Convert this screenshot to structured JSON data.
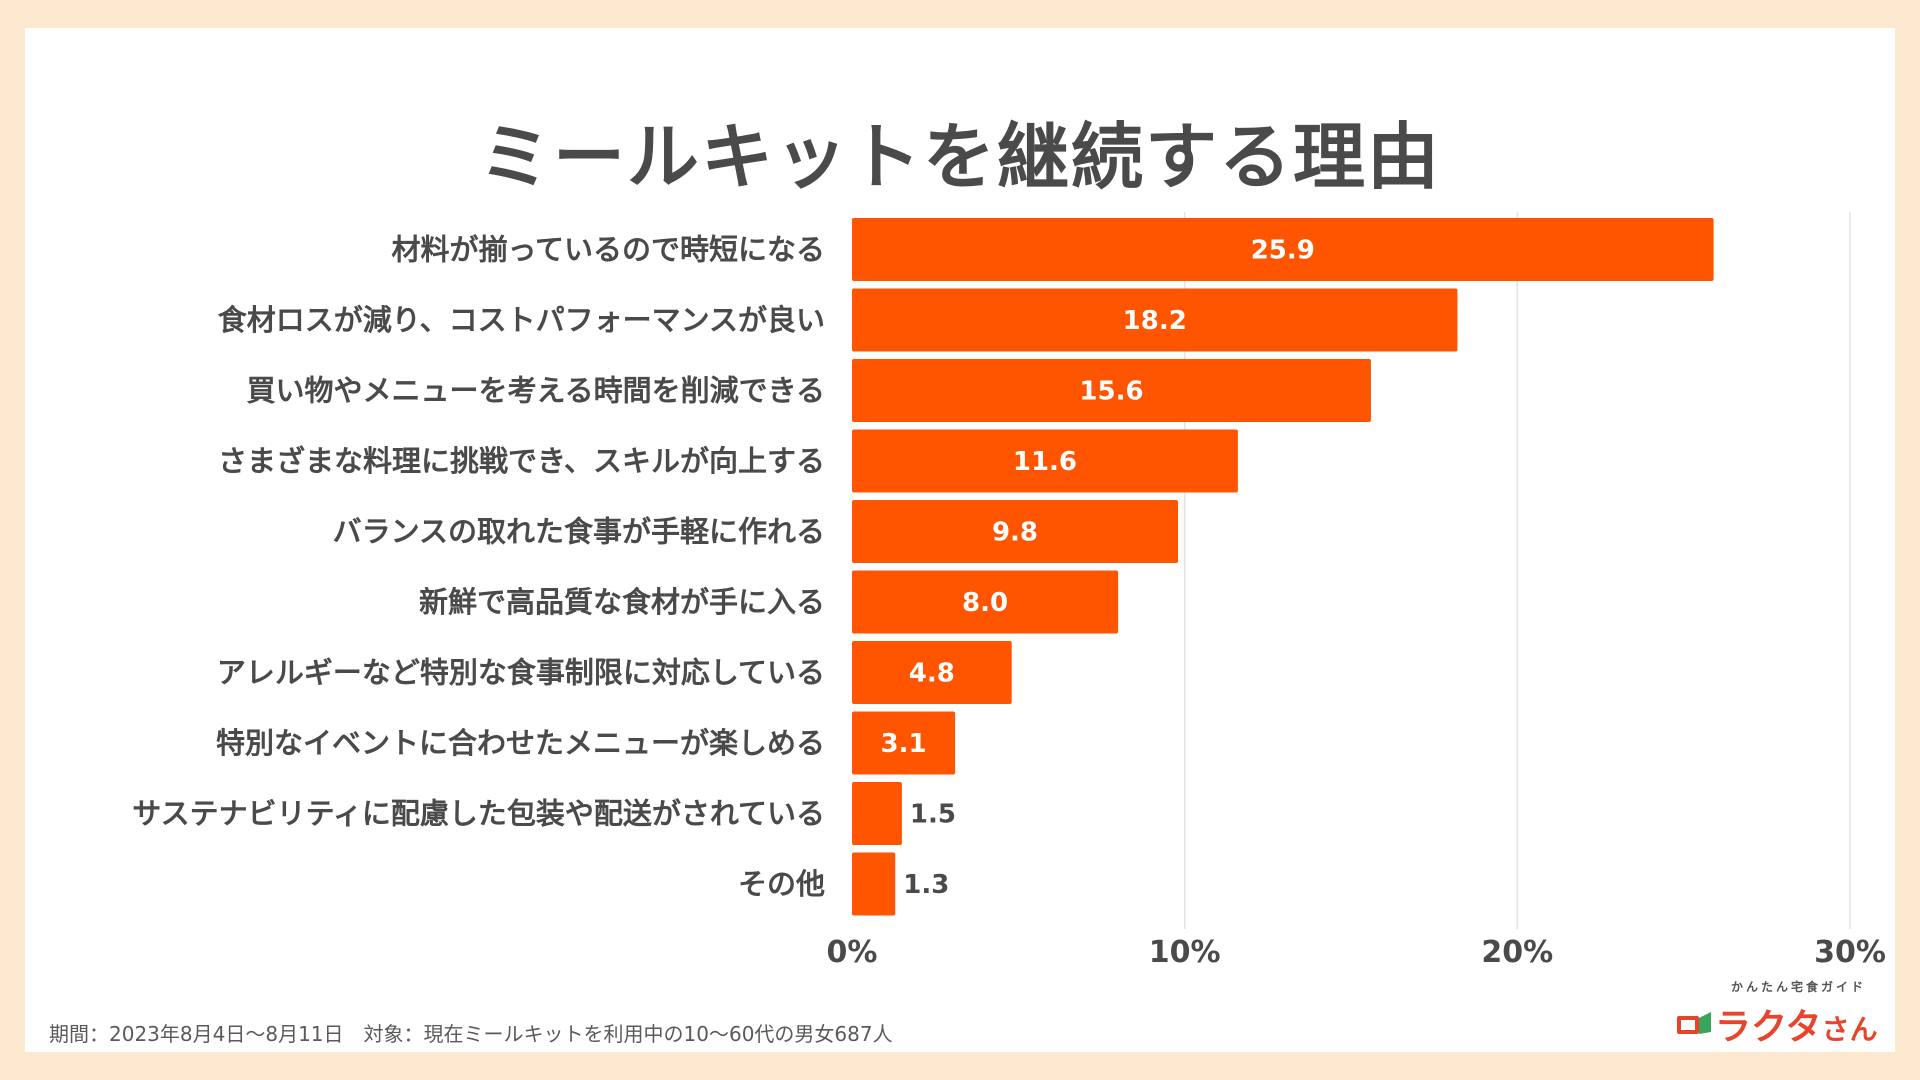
{
  "chart_data": {
    "type": "bar",
    "orientation": "horizontal",
    "title": "ミールキットを継続する理由",
    "categories": [
      "材料が揃っているので時短になる",
      "食材ロスが減り、コストパフォーマンスが良い",
      "買い物やメニューを考える時間を削減できる",
      "さまざまな料理に挑戦でき、スキルが向上する",
      "バランスの取れた食事が手軽に作れる",
      "新鮮で高品質な食材が手に入る",
      "アレルギーなど特別な食事制限に対応している",
      "特別なイベントに合わせたメニューが楽しめる",
      "サステナビリティに配慮した包装や配送がされている",
      "その他"
    ],
    "values": [
      25.9,
      18.2,
      15.6,
      11.6,
      9.8,
      8.0,
      4.8,
      3.1,
      1.5,
      1.3
    ],
    "value_labels": [
      "25.9",
      "18.2",
      "15.6",
      "11.6",
      "9.8",
      "8.0",
      "4.8",
      "3.1",
      "1.5",
      "1.3"
    ],
    "xlim": [
      0,
      30
    ],
    "x_ticks": [
      "0%",
      "10%",
      "20%",
      "30%"
    ],
    "grid": "vertical",
    "bar_color": "#ff5500"
  },
  "footer": {
    "note": "期間：2023年8月4日〜8月11日　対象：現在ミールキットを利用中の10〜60代の男女687人"
  },
  "logo": {
    "tagline": "かんたん宅食ガイド",
    "name": "ラクタ",
    "suffix": "さん"
  },
  "colors": {
    "background": "#fde9d0",
    "title": "#4a4a4a",
    "bar": "#ff5500",
    "logo": "#e8432b"
  }
}
